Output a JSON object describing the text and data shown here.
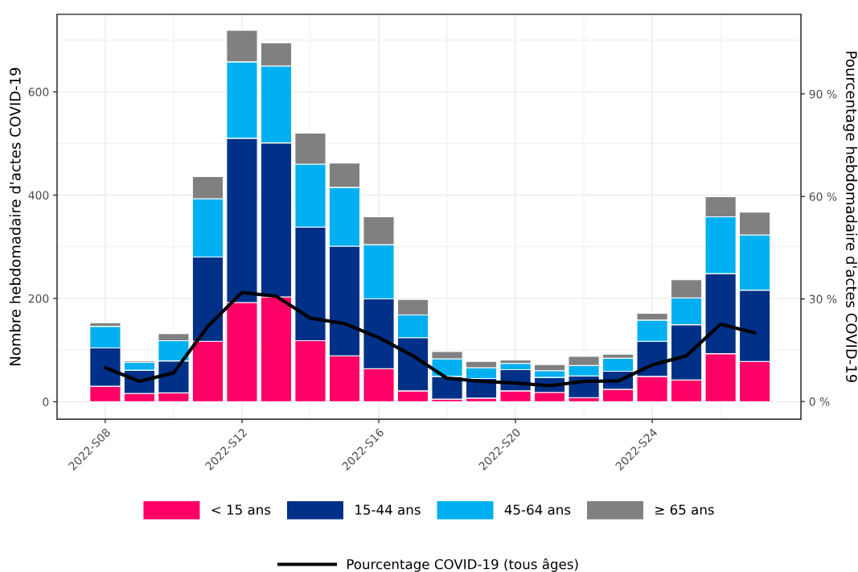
{
  "chart_data": {
    "type": "bar",
    "stacked": true,
    "categories": [
      "2022-S08",
      null,
      null,
      null,
      "2022-S12",
      null,
      null,
      null,
      "2022-S16",
      null,
      null,
      null,
      "2022-S20",
      null,
      null,
      null,
      "2022-S24",
      null,
      null,
      null
    ],
    "ylabel": "Nombre hebdomadaire d'actes COVID-19",
    "y2label": "Pourcentage hebdomadaire d'actes COVID-19",
    "ylim": [
      -34,
      750
    ],
    "yticks": [
      0,
      200,
      400,
      600
    ],
    "y2lim": [
      -5.2,
      113.3
    ],
    "y2ticks": [
      {
        "value": 0,
        "label": "0 %"
      },
      {
        "value": 30,
        "label": "30 %"
      },
      {
        "value": 60,
        "label": "60 %"
      },
      {
        "value": 90,
        "label": "90 %"
      }
    ],
    "grid": true,
    "legend": "bottom",
    "series": [
      {
        "name": "< 15 ans",
        "color": "#ff0066",
        "values": [
          30,
          16,
          17,
          117,
          192,
          203,
          118,
          89,
          64,
          21,
          5,
          7,
          21,
          18,
          8,
          24,
          49,
          42,
          93,
          78
        ]
      },
      {
        "name": "15-44 ans",
        "color": "#003087",
        "values": [
          74,
          45,
          62,
          163,
          318,
          298,
          220,
          212,
          135,
          103,
          44,
          38,
          41,
          29,
          42,
          35,
          68,
          107,
          155,
          138
        ]
      },
      {
        "name": "45-64 ans",
        "color": "#00b0f0",
        "values": [
          42,
          15,
          39,
          113,
          148,
          149,
          122,
          114,
          105,
          44,
          34,
          21,
          12,
          13,
          20,
          25,
          41,
          52,
          110,
          107
        ]
      },
      {
        "name": "≥ 65 ans",
        "color": "#808080",
        "values": [
          7,
          3,
          14,
          43,
          61,
          45,
          60,
          47,
          54,
          30,
          14,
          12,
          7,
          12,
          18,
          8,
          13,
          35,
          39,
          44
        ]
      },
      {
        "name": "Pourcentage COVID-19 (tous âges)",
        "type": "line",
        "axis": "y2",
        "color": "#000000",
        "values": [
          9.9,
          5.9,
          8.4,
          22.0,
          31.9,
          30.8,
          24.4,
          22.8,
          18.7,
          13.4,
          6.8,
          5.9,
          5.4,
          4.6,
          5.9,
          6.0,
          10.7,
          13.4,
          22.6,
          20.1
        ]
      }
    ]
  }
}
